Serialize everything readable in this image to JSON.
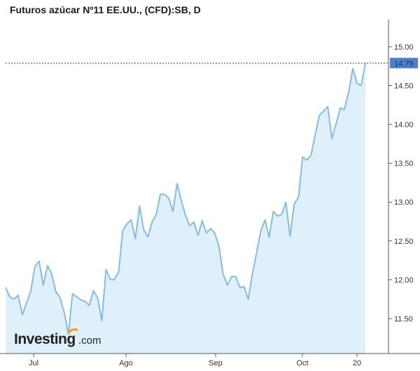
{
  "title": "Futuros azúcar Nº11 EE.UU., (CFD):SB, D",
  "brand": {
    "logo_main": "Investing",
    "logo_suffix": ".com",
    "accent": "#f5a000"
  },
  "colors": {
    "line": "#85bce6",
    "fill": "#e0f0fa",
    "price_line": "#1d4f91",
    "badge": "#4a7fd4",
    "badge_text": "#ffffff"
  },
  "chart_data": {
    "type": "area",
    "title": "Futuros azúcar Nº11 EE.UU., (CFD):SB, D",
    "xlabel": "",
    "ylabel": "",
    "ylim": [
      11.05,
      15.35
    ],
    "y_ticks": [
      "15.00",
      "14.50",
      "14.00",
      "13.50",
      "13.00",
      "12.50",
      "12.00",
      "11.50"
    ],
    "x_ticks": [
      "Jul",
      "Ago",
      "Sep",
      "Oct",
      "20"
    ],
    "last_price": "14.79",
    "values": [
      11.9,
      11.78,
      11.75,
      11.8,
      11.55,
      11.7,
      11.85,
      12.17,
      12.24,
      11.93,
      12.18,
      12.08,
      11.85,
      11.77,
      11.58,
      11.3,
      11.82,
      11.78,
      11.74,
      11.72,
      11.67,
      11.86,
      11.77,
      11.47,
      12.13,
      12.01,
      12.0,
      12.1,
      12.63,
      12.72,
      12.77,
      12.53,
      12.95,
      12.65,
      12.55,
      12.74,
      12.84,
      13.1,
      13.1,
      13.05,
      12.88,
      13.24,
      13.02,
      12.83,
      12.7,
      12.74,
      12.57,
      12.76,
      12.6,
      12.66,
      12.6,
      12.43,
      12.07,
      11.93,
      12.04,
      12.04,
      11.9,
      11.91,
      11.75,
      12.08,
      12.35,
      12.63,
      12.77,
      12.55,
      12.88,
      12.82,
      12.84,
      13.0,
      12.56,
      12.98,
      13.06,
      13.58,
      13.54,
      13.6,
      13.87,
      14.12,
      14.17,
      14.23,
      13.82,
      14.01,
      14.21,
      14.19,
      14.42,
      14.72,
      14.53,
      14.5,
      14.79
    ]
  }
}
